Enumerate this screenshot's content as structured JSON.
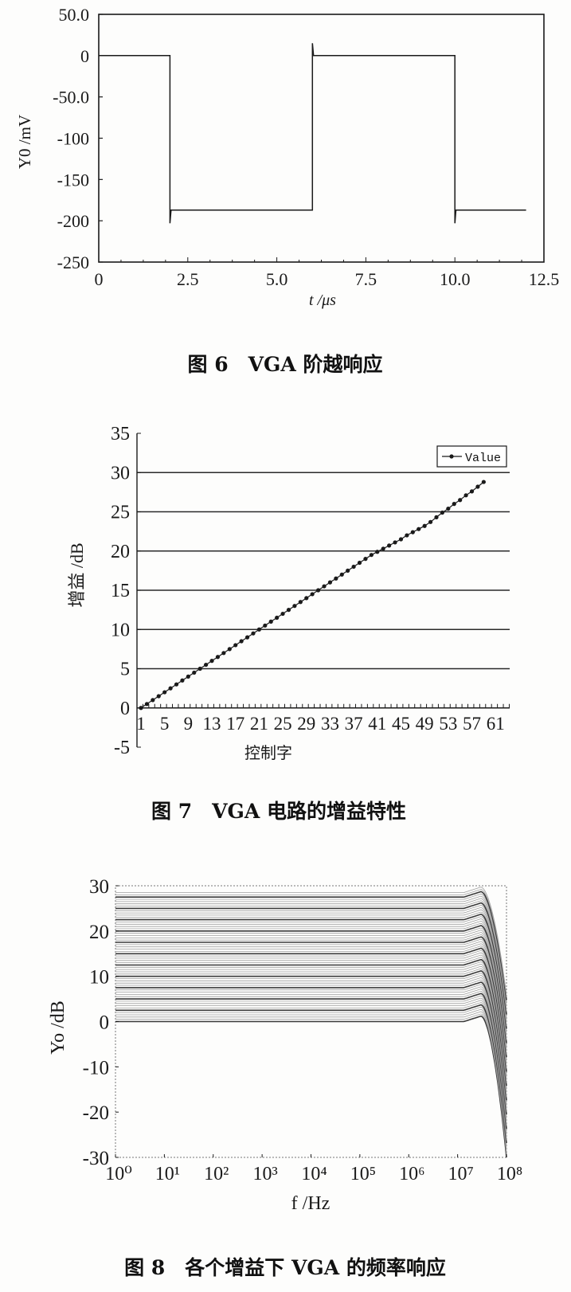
{
  "figures": [
    {
      "caption": "图 6　VGA 阶越响应"
    },
    {
      "caption": "图 7　VGA 电路的增益特性"
    },
    {
      "caption": "图 8　各个增益下 VGA 的频率响应"
    }
  ],
  "chart_data": [
    {
      "type": "line",
      "title": "",
      "xlabel": "t /μs",
      "ylabel": "Y0 /mV",
      "xlim": [
        0,
        12.5
      ],
      "ylim": [
        -250,
        50
      ],
      "xticks": [
        0,
        2.5,
        5,
        7.5,
        10,
        12.5
      ],
      "xtick_labels": [
        "0",
        "2.5",
        "5.0",
        "7.5",
        "10.0",
        "12.5"
      ],
      "yticks": [
        50,
        0,
        -50,
        -100,
        -150,
        -200,
        -250
      ],
      "ytick_labels": [
        "50.0",
        "0",
        "-50.0",
        "-100",
        "-150",
        "-200",
        "-250"
      ],
      "grid": false,
      "series": [
        {
          "x": [
            0,
            2,
            2,
            2.03,
            6,
            6,
            6.03,
            10,
            10,
            10.03,
            12
          ],
          "y": [
            0,
            0,
            -203,
            -187,
            -187,
            15,
            0,
            0,
            -203,
            -187,
            -187
          ]
        }
      ]
    },
    {
      "type": "line",
      "title": "",
      "xlabel": "控制字",
      "ylabel": "增益 /dB",
      "ylim": [
        -5,
        35
      ],
      "yticks": [
        35,
        30,
        25,
        20,
        15,
        10,
        5,
        0,
        -5
      ],
      "ytick_labels": [
        "35",
        "30",
        "25",
        "20",
        "15",
        "10",
        "5",
        "0",
        "-5"
      ],
      "xlim": [
        1,
        63
      ],
      "xtick_labels": [
        "1",
        "5",
        "9",
        "13",
        "17",
        "21",
        "25",
        "29",
        "33",
        "37",
        "41",
        "45",
        "49",
        "53",
        "57",
        "61"
      ],
      "grid": true,
      "legend": {
        "position": "top-right",
        "entries": [
          "Value"
        ]
      },
      "series": [
        {
          "name": "Value",
          "x": [
            1,
            2,
            3,
            4,
            5,
            6,
            7,
            8,
            9,
            10,
            11,
            12,
            13,
            14,
            15,
            16,
            17,
            18,
            19,
            20,
            21,
            22,
            23,
            24,
            25,
            26,
            27,
            28,
            29,
            30,
            31,
            32,
            33,
            34,
            35,
            36,
            37,
            38,
            39,
            40,
            41,
            42,
            43,
            44,
            45,
            46,
            47,
            48,
            49,
            50,
            51,
            52,
            53,
            54,
            55,
            56,
            57,
            58,
            59
          ],
          "y": [
            0,
            0.5,
            1,
            1.5,
            2,
            2.5,
            3,
            3.5,
            4,
            4.5,
            5,
            5.5,
            6,
            6.5,
            7,
            7.5,
            8,
            8.5,
            9,
            9.5,
            10,
            10.5,
            11,
            11.5,
            12,
            12.5,
            13,
            13.5,
            14,
            14.5,
            15,
            15.5,
            16,
            16.5,
            17,
            17.5,
            18,
            18.5,
            19,
            19.5,
            19.9,
            20.3,
            20.7,
            21.1,
            21.5,
            22,
            22.4,
            22.8,
            23.2,
            23.7,
            24.3,
            24.9,
            25.4,
            26,
            26.5,
            27.1,
            27.6,
            28.2,
            28.8
          ]
        }
      ]
    },
    {
      "type": "line",
      "title": "",
      "xlabel": "f /Hz",
      "ylabel": "Yo /dB",
      "xscale": "log",
      "xlim": [
        1,
        100000000
      ],
      "ylim": [
        -30,
        30
      ],
      "xtick_labels": [
        "10⁰",
        "10¹",
        "10²",
        "10³",
        "10⁴",
        "10⁵",
        "10⁶",
        "10⁷",
        "10⁸"
      ],
      "yticks": [
        30,
        20,
        10,
        0,
        -10,
        -20,
        -30
      ],
      "ytick_labels": [
        "30",
        "20",
        "10",
        "0",
        "-10",
        "-20",
        "-30"
      ],
      "grid": false,
      "series_note_free": true,
      "passband_gains_dB": [
        0,
        0.5,
        1,
        1.5,
        2,
        2.5,
        3,
        3.5,
        4,
        4.5,
        5,
        5.5,
        6,
        6.5,
        7,
        7.5,
        8,
        8.5,
        9,
        9.5,
        10,
        10.5,
        11,
        11.5,
        12,
        12.5,
        13,
        13.5,
        14,
        14.5,
        15,
        15.5,
        16,
        16.5,
        17,
        17.5,
        18,
        18.5,
        19,
        19.5,
        20,
        20.5,
        21,
        21.5,
        22,
        22.5,
        23,
        23.5,
        24,
        24.5,
        25,
        25.5,
        26,
        26.5,
        27,
        27.5,
        28,
        28.5
      ],
      "value_at_100MHz_dB": {
        "lowest_gain": -30,
        "highest_gain": 6
      },
      "peaking_frequency_Hz": 30000000
    }
  ],
  "colors": {
    "ink": "#1a1a1a",
    "grid": "#2a2a2a",
    "trace_light": "#9a9a9a",
    "paper": "#fdfdfc"
  }
}
